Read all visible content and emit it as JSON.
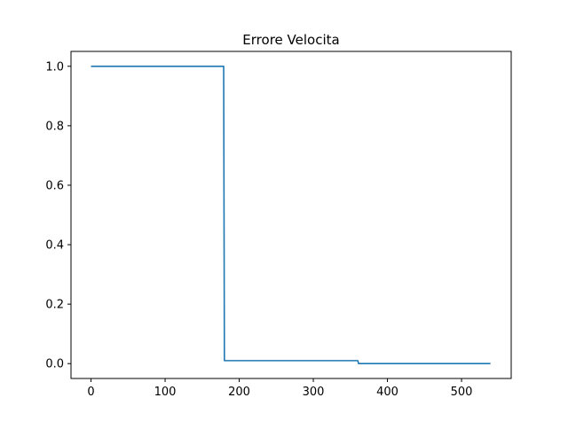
{
  "chart_data": {
    "type": "line",
    "title": "Errore Velocita",
    "xlabel": "",
    "ylabel": "",
    "xlim": [
      -27,
      567
    ],
    "ylim": [
      -0.05,
      1.05
    ],
    "x_ticks": [
      0,
      100,
      200,
      300,
      400,
      500
    ],
    "x_tick_labels": [
      "0",
      "100",
      "200",
      "300",
      "400",
      "500"
    ],
    "y_ticks": [
      0.0,
      0.2,
      0.4,
      0.6,
      0.8,
      1.0
    ],
    "y_tick_labels": [
      "0.0",
      "0.2",
      "0.4",
      "0.6",
      "0.8",
      "1.0"
    ],
    "grid": false,
    "series": [
      {
        "color": "#1f77b4",
        "x": [
          0,
          179,
          180,
          360,
          361,
          539
        ],
        "y": [
          1.0,
          1.0,
          0.01,
          0.01,
          0.0,
          0.0
        ]
      }
    ]
  }
}
